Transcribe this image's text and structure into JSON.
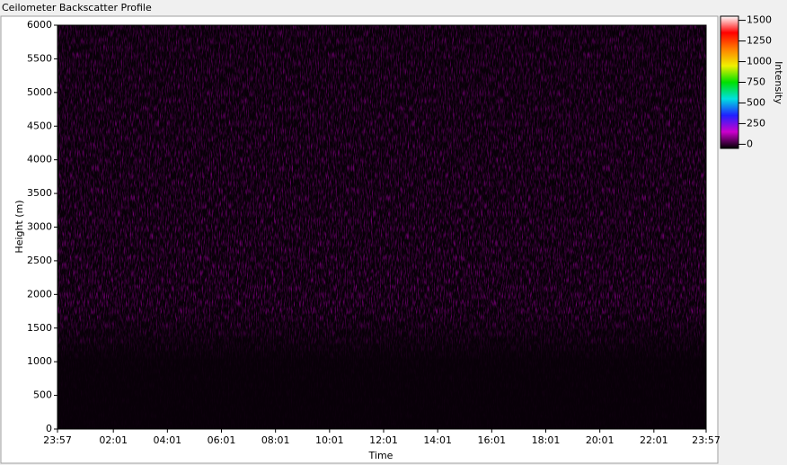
{
  "chart_data": {
    "type": "heatmap",
    "title": "Ceilometer Backscatter Profile",
    "x_label": "Time",
    "y_label": "Height (m)",
    "colorbar_label": "Intensity",
    "xlim": [
      0,
      1440
    ],
    "xticks": [
      {
        "value": 0,
        "label": "23:57"
      },
      {
        "value": 124,
        "label": "02:01"
      },
      {
        "value": 244,
        "label": "04:01"
      },
      {
        "value": 364,
        "label": "06:01"
      },
      {
        "value": 484,
        "label": "08:01"
      },
      {
        "value": 604,
        "label": "10:01"
      },
      {
        "value": 724,
        "label": "12:01"
      },
      {
        "value": 844,
        "label": "14:01"
      },
      {
        "value": 964,
        "label": "16:01"
      },
      {
        "value": 1084,
        "label": "18:01"
      },
      {
        "value": 1204,
        "label": "20:01"
      },
      {
        "value": 1324,
        "label": "22:01"
      },
      {
        "value": 1440,
        "label": "23:57"
      }
    ],
    "ylim": [
      0,
      6000
    ],
    "yticks": [
      0,
      500,
      1000,
      1500,
      2000,
      2500,
      3000,
      3500,
      4000,
      4500,
      5000,
      5500,
      6000
    ],
    "clim": [
      -50,
      1550
    ],
    "cticks": [
      0,
      250,
      500,
      750,
      1000,
      1250,
      1500
    ],
    "colormap": [
      "#000000",
      "#cc00cc",
      "#2020ff",
      "#00e0e0",
      "#00e000",
      "#f0f000",
      "#ff8000",
      "#ff0000",
      "#ffffff"
    ]
  }
}
